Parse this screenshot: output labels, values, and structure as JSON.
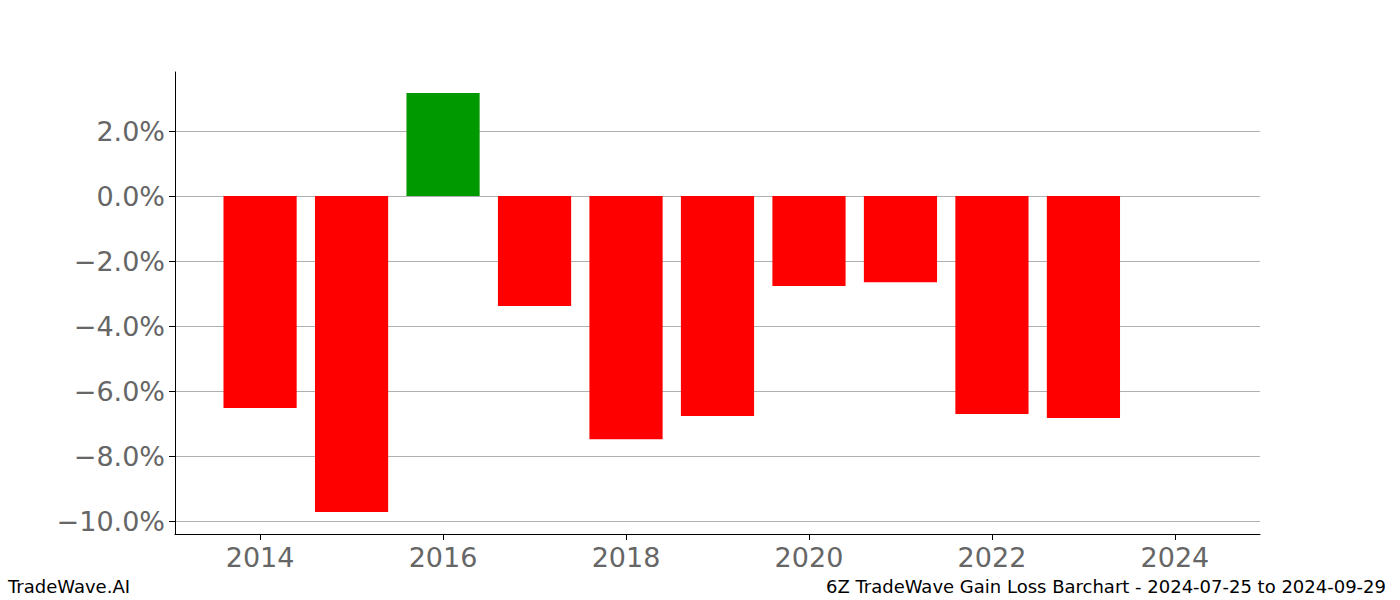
{
  "chart_data": {
    "type": "bar",
    "annotations": [
      "TradeWave.AI",
      "6Z TradeWave Gain Loss Barchart - 2024-07-25 to 2024-09-29"
    ],
    "x": [
      2014,
      2015,
      2016,
      2017,
      2018,
      2019,
      2020,
      2021,
      2022,
      2023
    ],
    "values": [
      -6.52,
      -9.72,
      3.17,
      -3.38,
      -7.48,
      -6.77,
      -2.77,
      -2.65,
      -6.71,
      -6.83
    ],
    "colors": [
      "#ff0000",
      "#ff0000",
      "#009900",
      "#ff0000",
      "#ff0000",
      "#ff0000",
      "#ff0000",
      "#ff0000",
      "#ff0000",
      "#ff0000"
    ],
    "xlim": [
      2013.07,
      2024.93
    ],
    "xticks": [
      2014,
      2016,
      2018,
      2020,
      2022,
      2024
    ],
    "ylim": [
      -10.4,
      3.82
    ],
    "yticks": [
      {
        "value": -10,
        "label": "−10.0%"
      },
      {
        "value": -8,
        "label": "−8.0%"
      },
      {
        "value": -6,
        "label": "−6.0%"
      },
      {
        "value": -4,
        "label": "−4.0%"
      },
      {
        "value": -2,
        "label": "−2.0%"
      },
      {
        "value": 0,
        "label": "0.0%"
      },
      {
        "value": 2,
        "label": "2.0%"
      }
    ],
    "grid": true
  }
}
